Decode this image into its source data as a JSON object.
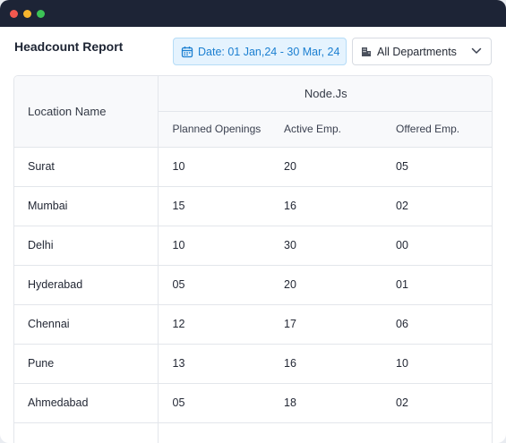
{
  "window": {
    "controls": [
      "close",
      "minimize",
      "maximize"
    ]
  },
  "report": {
    "title": "Headcount Report",
    "date_filter": "Date: 01 Jan,24 - 30 Mar, 24",
    "department_filter": "All Departments"
  },
  "colors": {
    "titlebar": "#1d2436",
    "date_text": "#1b7fd1",
    "date_bg": "#e5f3fe"
  },
  "icons": {
    "date": "calendar-icon",
    "department": "building-icon",
    "dropdown": "chevron-down-icon"
  },
  "table": {
    "location_header": "Location Name",
    "group_header": "Node.Js",
    "columns": [
      "Planned Openings",
      "Active Emp.",
      "Offered Emp."
    ],
    "rows": [
      {
        "location": "Surat",
        "planned": "10",
        "active": "20",
        "offered": "05"
      },
      {
        "location": "Mumbai",
        "planned": "15",
        "active": "16",
        "offered": "02"
      },
      {
        "location": "Delhi",
        "planned": "10",
        "active": "30",
        "offered": "00"
      },
      {
        "location": "Hyderabad",
        "planned": "05",
        "active": "20",
        "offered": "01"
      },
      {
        "location": "Chennai",
        "planned": "12",
        "active": "17",
        "offered": "06"
      },
      {
        "location": "Pune",
        "planned": "13",
        "active": "16",
        "offered": "10"
      },
      {
        "location": "Ahmedabad",
        "planned": "05",
        "active": "18",
        "offered": "02"
      },
      {
        "location": "",
        "planned": "",
        "active": "",
        "offered": ""
      }
    ]
  }
}
